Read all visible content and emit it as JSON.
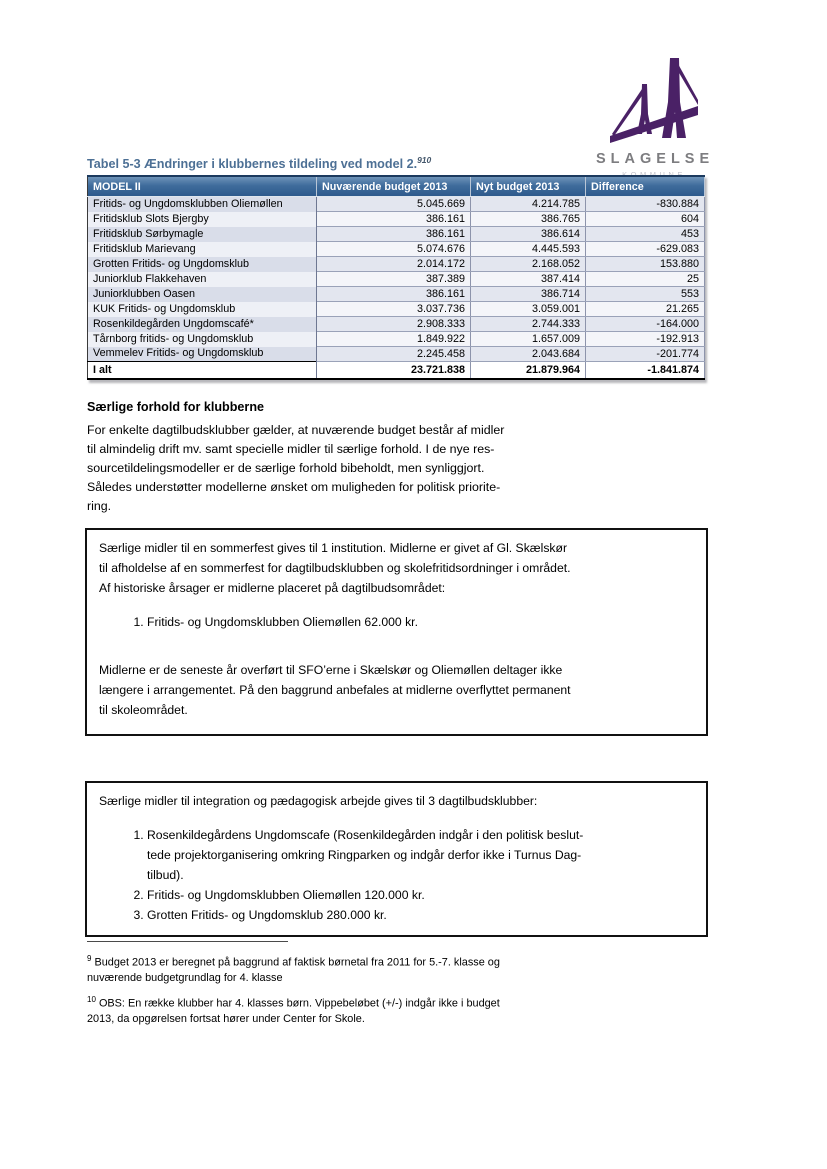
{
  "logo": {
    "text": "SLAGELSE",
    "subtext": "KOMMUNE",
    "bridge_color": "#4a2166",
    "text_color": "#7d7d80"
  },
  "table_title": {
    "label": "Tabel 5-3 Ændringer i klubbernes tildeling ved model 2.",
    "footnote_refs": "910",
    "title_color": "#4d7095"
  },
  "table": {
    "headers": [
      "MODEL II",
      "Nuværende budget 2013",
      "Nyt budget 2013",
      "Difference"
    ],
    "header_bg": "#3f6c9c",
    "rows": [
      [
        "Fritids- og Ungdomsklubben Oliemøllen",
        "5.045.669",
        "4.214.785",
        "-830.884"
      ],
      [
        "Fritidsklub Slots Bjergby",
        "386.161",
        "386.765",
        "604"
      ],
      [
        "Fritidsklub Sørbymagle",
        "386.161",
        "386.614",
        "453"
      ],
      [
        "Fritidsklub Marievang",
        "5.074.676",
        "4.445.593",
        "-629.083"
      ],
      [
        "Grotten Fritids- og Ungdomsklub",
        "2.014.172",
        "2.168.052",
        "153.880"
      ],
      [
        "Juniorklub Flakkehaven",
        "387.389",
        "387.414",
        "25"
      ],
      [
        "Juniorklubben Oasen",
        "386.161",
        "386.714",
        "553"
      ],
      [
        "KUK Fritids- og Ungdomsklub",
        "3.037.736",
        "3.059.001",
        "21.265"
      ],
      [
        "Rosenkildegården Ungdomscafé*",
        "2.908.333",
        "2.744.333",
        "-164.000"
      ],
      [
        "Tårnborg fritids- og Ungdomsklub",
        "1.849.922",
        "1.657.009",
        "-192.913"
      ],
      [
        "Vemmelev Fritids- og Ungdomsklub",
        "2.245.458",
        "2.043.684",
        "-201.774"
      ]
    ],
    "total": [
      "I alt",
      "23.721.838",
      "21.879.964",
      "-1.841.874"
    ]
  },
  "section": {
    "heading": "Særlige forhold for klubberne",
    "paragraph": "For enkelte dagtilbudsklubber gælder, at nuværende budget består af midler\ntil almindelig drift mv. samt specielle midler til særlige forhold. I de nye res-\nsourcetildelingsmodeller er de særlige forhold bibeholdt, men synliggjort.\nSåledes understøtter modellerne ønsket om muligheden for politisk priorite-\nring."
  },
  "box1": {
    "para1": "Særlige midler til en sommerfest gives til 1 institution. Midlerne er givet af Gl. Skælskør\ntil afholdelse af en sommerfest for dagtilbudsklubben og skolefritidsordninger i området.\nAf historiske årsager er midlerne placeret på dagtilbudsområdet:",
    "items": [
      "Fritids- og Ungdomsklubben Oliemøllen 62.000 kr."
    ],
    "para2": "Midlerne er de seneste år overført til SFO’erne i Skælskør og Oliemøllen deltager ikke\nlængere i arrangementet. På den baggrund anbefales at midlerne overflyttet permanent\ntil skoleområdet."
  },
  "box2": {
    "intro": "Særlige midler til integration og pædagogisk arbejde gives til 3 dagtilbudsklubber:",
    "items": [
      "Rosenkildegårdens Ungdomscafe (Rosenkildegården indgår i den politisk beslut-\ntede projektorganisering omkring Ringparken og indgår derfor ikke i Turnus Dag-\ntilbud).",
      "Fritids- og Ungdomsklubben Oliemøllen 120.000 kr.",
      "Grotten Fritids- og Ungdomsklub 280.000 kr."
    ]
  },
  "footnotes": [
    {
      "ref": "9",
      "text": "Budget 2013 er beregnet på baggrund af faktisk børnetal fra 2011 for 5.-7. klasse og\nnuværende budgetgrundlag for 4. klasse"
    },
    {
      "ref": "10",
      "text": "OBS: En række klubber har 4. klasses børn. Vippebeløbet (+/-) indgår ikke i budget\n2013, da opgørelsen fortsat hører under Center for Skole."
    }
  ]
}
